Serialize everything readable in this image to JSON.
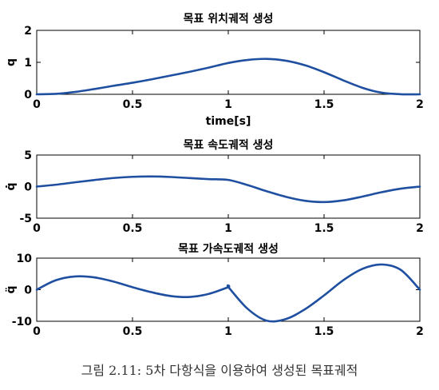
{
  "caption": "그림 2.11: 5차 다항식을 이용하여 생성된 목표궤적",
  "chart_data": [
    {
      "type": "line",
      "title": "목표 위치궤적 생성",
      "xlabel": "time[s]",
      "ylabel": "q",
      "xlim": [
        0,
        2
      ],
      "ylim": [
        0,
        2
      ],
      "xticks": [
        "0",
        "0.5",
        "1",
        "1.5",
        "2"
      ],
      "yticks": [
        "0",
        "1",
        "2"
      ],
      "x": [
        0,
        0.1,
        0.2,
        0.3,
        0.4,
        0.5,
        0.6,
        0.7,
        0.8,
        0.9,
        1.0,
        1.1,
        1.2,
        1.3,
        1.4,
        1.5,
        1.6,
        1.7,
        1.8,
        1.9,
        2.0
      ],
      "series": [
        {
          "values": [
            0,
            0.014,
            0.073,
            0.164,
            0.265,
            0.361,
            0.469,
            0.588,
            0.707,
            0.837,
            0.98,
            1.074,
            1.109,
            1.052,
            0.909,
            0.691,
            0.437,
            0.204,
            0.051,
            0.002,
            0
          ]
        }
      ]
    },
    {
      "type": "line",
      "title": "목표 속도궤적 생성",
      "ylabel": "q̇",
      "xlim": [
        0,
        2
      ],
      "ylim": [
        -5,
        5
      ],
      "xticks": [
        "0",
        "0.5",
        "1",
        "1.5",
        "2"
      ],
      "yticks": [
        "-5",
        "0",
        "5"
      ],
      "x": [
        0,
        0.1,
        0.2,
        0.3,
        0.4,
        0.5,
        0.6,
        0.7,
        0.8,
        0.9,
        1.0,
        1.1,
        1.2,
        1.3,
        1.4,
        1.5,
        1.6,
        1.7,
        1.8,
        1.9,
        2.0
      ],
      "series": [
        {
          "values": [
            0,
            0.3,
            0.68,
            1.04,
            1.36,
            1.55,
            1.6,
            1.52,
            1.35,
            1.18,
            1.06,
            0.25,
            -0.73,
            -1.61,
            -2.24,
            -2.45,
            -2.18,
            -1.58,
            -0.89,
            -0.32,
            0
          ]
        }
      ]
    },
    {
      "type": "line",
      "title": "목표 가속도궤적 생성",
      "ylabel": "q̈",
      "xlim": [
        0,
        2
      ],
      "ylim": [
        -10,
        10
      ],
      "xticks": [
        "0",
        "0.5",
        "1",
        "1.5",
        "2"
      ],
      "yticks": [
        "-10",
        "0",
        "10"
      ],
      "x": [
        0,
        0.1,
        0.2,
        0.3,
        0.4,
        0.5,
        0.6,
        0.7,
        0.8,
        0.9,
        1.0,
        1.001,
        1.1,
        1.2,
        1.3,
        1.4,
        1.5,
        1.6,
        1.7,
        1.8,
        1.9,
        2.0
      ],
      "series": [
        {
          "values": [
            0,
            3.0,
            4.2,
            3.9,
            2.6,
            0.8,
            -0.8,
            -2.0,
            -2.3,
            -1.3,
            0.8,
            0.8,
            -6.0,
            -9.8,
            -9.3,
            -6.2,
            -1.8,
            3.0,
            6.6,
            8.0,
            6.3,
            0
          ]
        }
      ]
    }
  ]
}
